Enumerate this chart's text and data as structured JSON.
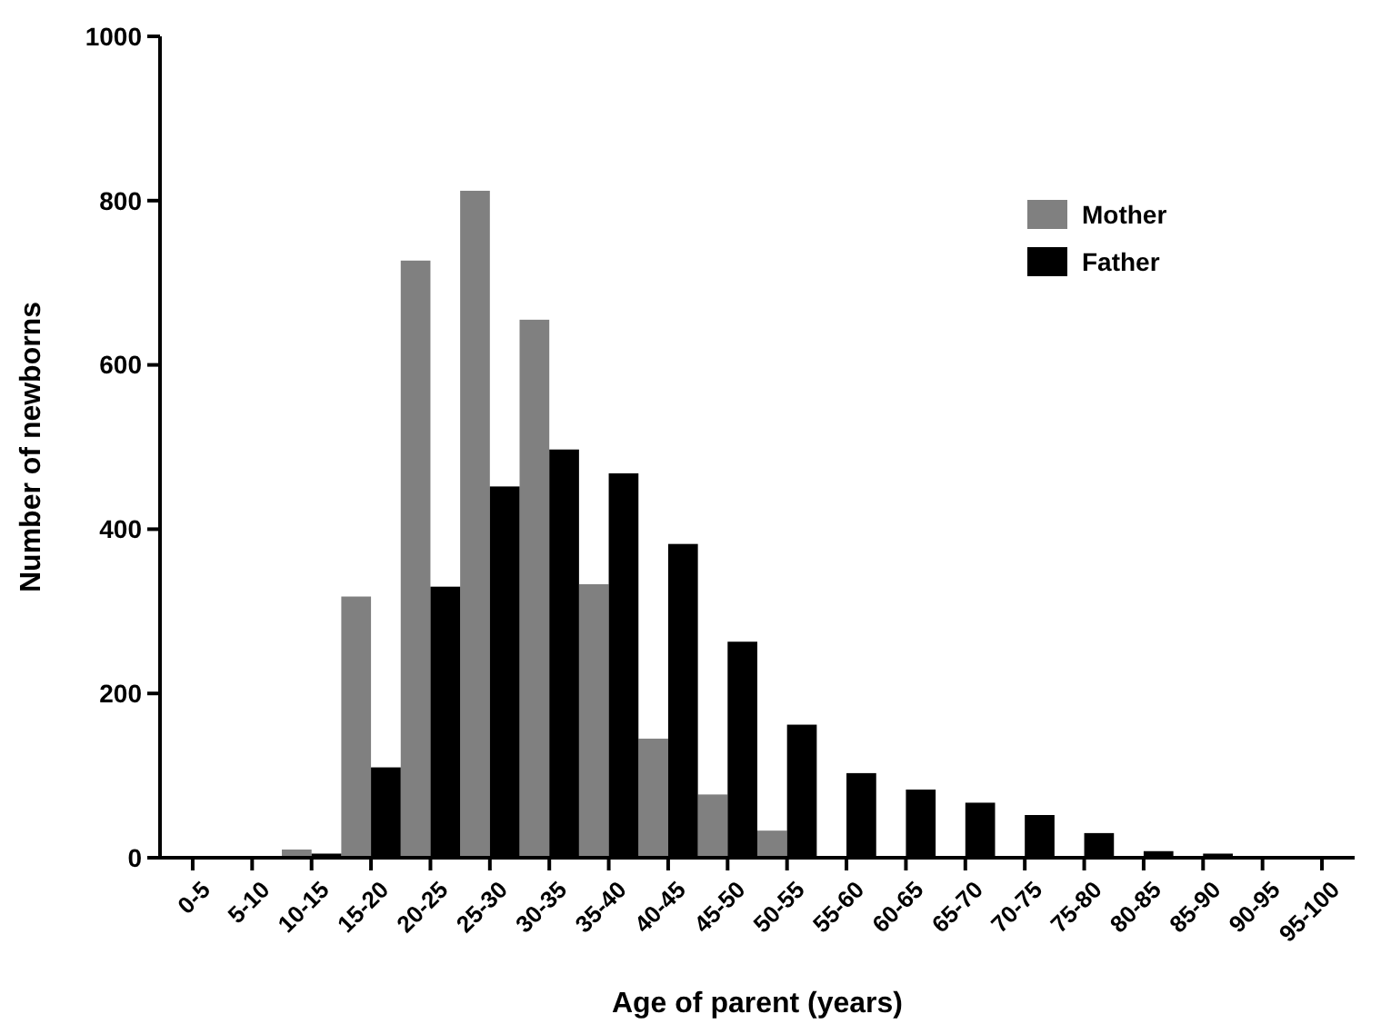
{
  "chart_data": {
    "type": "bar",
    "xlabel": "Age of parent (years)",
    "ylabel": "Number of newborns",
    "categories": [
      "0-5",
      "5-10",
      "10-15",
      "15-20",
      "20-25",
      "25-30",
      "30-35",
      "35-40",
      "40-45",
      "45-50",
      "50-55",
      "55-60",
      "60-65",
      "65-70",
      "70-75",
      "75-80",
      "80-85",
      "85-90",
      "90-95",
      "95-100"
    ],
    "series": [
      {
        "name": "Mother",
        "color": "#808080",
        "values": [
          0,
          0,
          10,
          318,
          727,
          812,
          655,
          333,
          145,
          77,
          33,
          null,
          0,
          0,
          0,
          0,
          0,
          0,
          0,
          0
        ]
      },
      {
        "name": "Father",
        "color": "#000000",
        "values": [
          0,
          0,
          5,
          110,
          330,
          452,
          497,
          468,
          382,
          263,
          162,
          103,
          83,
          67,
          52,
          30,
          8,
          5,
          1,
          1
        ]
      }
    ],
    "ylim": [
      0,
      1000
    ],
    "yticks": [
      0,
      200,
      400,
      600,
      800,
      1000
    ],
    "legend": "top right"
  }
}
